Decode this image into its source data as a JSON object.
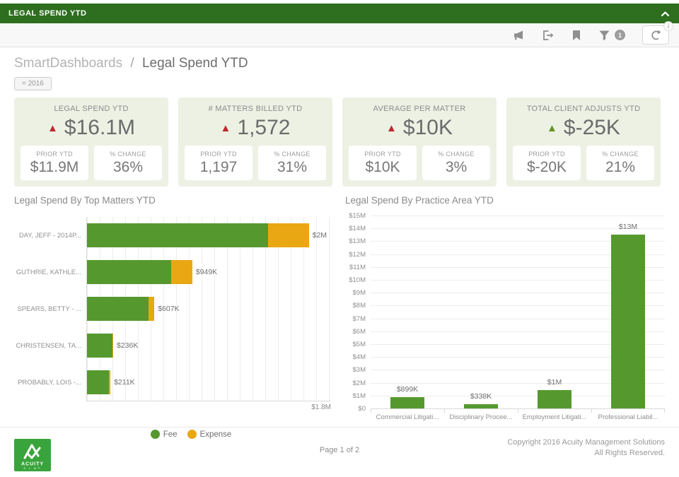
{
  "topbar": {
    "title": "LEGAL SPEND YTD"
  },
  "toolbar": {
    "icons": [
      "announce-icon",
      "export-icon",
      "bookmark-icon",
      "filter-icon",
      "refresh-icon"
    ],
    "filter_badge": "1",
    "info_badge": "i"
  },
  "breadcrumb": {
    "parent": "SmartDashboards",
    "separator": "/",
    "current": "Legal Spend YTD"
  },
  "filter_chip": "= 2016",
  "kpis": [
    {
      "title": "LEGAL SPEND YTD",
      "trend": "up",
      "trend_color": "#c1272d",
      "value": "$16.1M",
      "prior_label": "PRIOR YTD",
      "prior": "$11.9M",
      "change_label": "% CHANGE",
      "change": "36%"
    },
    {
      "title": "# MATTERS BILLED YTD",
      "trend": "up",
      "trend_color": "#c1272d",
      "value": "1,572",
      "prior_label": "PRIOR YTD",
      "prior": "1,197",
      "change_label": "% CHANGE",
      "change": "31%"
    },
    {
      "title": "AVERAGE PER MATTER",
      "trend": "up",
      "trend_color": "#c1272d",
      "value": "$10K",
      "prior_label": "PRIOR YTD",
      "prior": "$10K",
      "change_label": "% CHANGE",
      "change": "3%"
    },
    {
      "title": "TOTAL CLIENT ADJUSTS YTD",
      "trend": "up",
      "trend_color": "#5f9422",
      "value": "$-25K",
      "prior_label": "PRIOR YTD",
      "prior": "$-20K",
      "change_label": "% CHANGE",
      "change": "21%"
    }
  ],
  "chart_data": [
    {
      "type": "bar",
      "orientation": "horizontal",
      "stacked": true,
      "title": "Legal Spend By Top Matters YTD",
      "categories": [
        "DAY, JEFF - 2014P...",
        "GUTHRIE, KATHLE...",
        "SPEARS, BETTY - ...",
        "CHRISTENSEN, TA...",
        "PROBABLY, LOIS -..."
      ],
      "series": [
        {
          "name": "Fee",
          "values_k": [
            1630,
            760,
            552,
            230,
            195
          ]
        },
        {
          "name": "Expense",
          "values_k": [
            370,
            189,
            55,
            6,
            16
          ]
        }
      ],
      "total_labels": [
        "$2M",
        "$949K",
        "$607K",
        "$236K",
        "$211K"
      ],
      "xmax_k": 2200,
      "axis_end_label": "$1.8M",
      "legend": [
        "Fee",
        "Expense"
      ],
      "legend_position": "bottom"
    },
    {
      "type": "bar",
      "orientation": "vertical",
      "title": "Legal Spend By Practice Area YTD",
      "categories": [
        "Commercial Litigati...",
        "Disciplinary Procee...",
        "Employment Litigati...",
        "Professional Liabil..."
      ],
      "values_m": [
        0.9,
        0.34,
        1.45,
        13.5
      ],
      "value_labels": [
        "$899K",
        "$338K",
        "$1M",
        "$13M"
      ],
      "ylim_m": [
        0,
        15
      ],
      "ytick_labels": [
        "$15M",
        "$14M",
        "$13M",
        "$12M",
        "$11M",
        "$10M",
        "$9M",
        "$8M",
        "$7M",
        "$6M",
        "$5M",
        "$4M",
        "$3M",
        "$2M",
        "$1M",
        "$0"
      ],
      "grid": true
    }
  ],
  "footer": {
    "page": "Page 1 of 2",
    "copyright_line1": "Copyright 2016 Acuity Management Solutions",
    "copyright_line2": "All Rights Reserved.",
    "logo_text": "ACUITY",
    "logo_sub": "E L M™"
  },
  "colors": {
    "header_green": "#2d6e1f",
    "logo_green": "#3aa43c",
    "chart_green": "#55992e",
    "chart_orange": "#e9a713",
    "trend_red": "#c1272d",
    "trend_green": "#5f9422"
  }
}
